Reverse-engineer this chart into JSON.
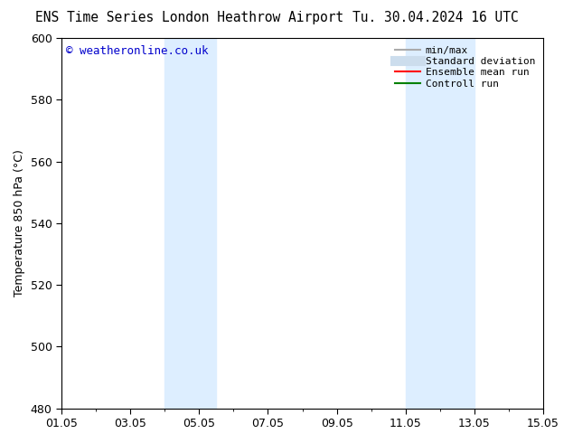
{
  "title_left": "ENS Time Series London Heathrow Airport",
  "title_right": "Tu. 30.04.2024 16 UTC",
  "ylabel": "Temperature 850 hPa (°C)",
  "watermark": "© weatheronline.co.uk",
  "watermark_color": "#0000cc",
  "xlim_start": 0,
  "xlim_end": 14,
  "ylim_bottom": 480,
  "ylim_top": 600,
  "yticks": [
    480,
    500,
    520,
    540,
    560,
    580,
    600
  ],
  "xtick_labels": [
    "01.05",
    "03.05",
    "05.05",
    "07.05",
    "09.05",
    "11.05",
    "13.05",
    "15.05"
  ],
  "xtick_positions": [
    0,
    2,
    4,
    6,
    8,
    10,
    12,
    14
  ],
  "shaded_regions": [
    {
      "x_start": 3.0,
      "x_end": 4.5,
      "color": "#ddeeff"
    },
    {
      "x_start": 10.0,
      "x_end": 12.0,
      "color": "#ddeeff"
    }
  ],
  "legend_entries": [
    {
      "label": "min/max",
      "color": "#aaaaaa",
      "lw": 1.5
    },
    {
      "label": "Standard deviation",
      "color": "#ccdded",
      "lw": 8
    },
    {
      "label": "Ensemble mean run",
      "color": "#ff0000",
      "lw": 1.5
    },
    {
      "label": "Controll run",
      "color": "#008000",
      "lw": 1.5
    }
  ],
  "background_color": "#ffffff",
  "font_size": 9,
  "title_fontsize": 10.5
}
